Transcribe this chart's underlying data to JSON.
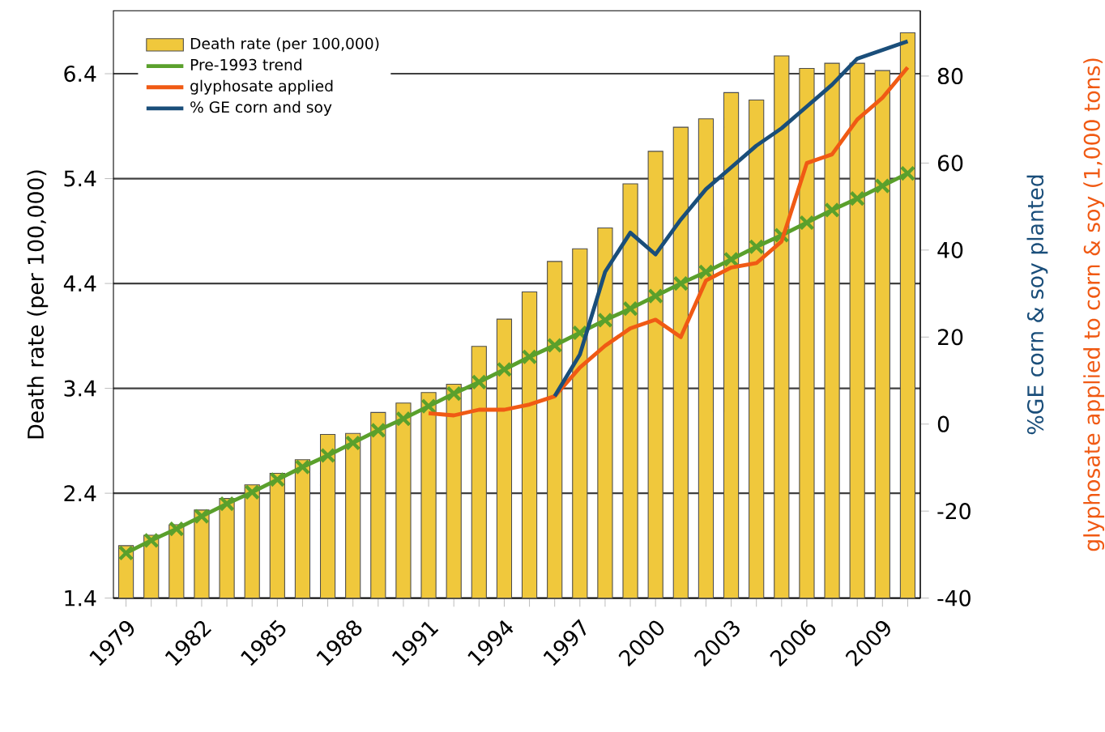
{
  "chart_data": {
    "type": "bar",
    "ylabel": "Death rate (per 100,000)",
    "y2label": "%GE corn & soy planted",
    "annotations": [
      "glyphosate applied to corn & soy (1,000 tons)"
    ],
    "x": [
      1979,
      1980,
      1981,
      1982,
      1983,
      1984,
      1985,
      1986,
      1987,
      1988,
      1989,
      1990,
      1991,
      1992,
      1993,
      1994,
      1995,
      1996,
      1997,
      1998,
      1999,
      2000,
      2001,
      2002,
      2003,
      2004,
      2005,
      2006,
      2007,
      2008,
      2009,
      2010
    ],
    "series": [
      {
        "name": "Death rate (per 100,000)",
        "color": "#f0c83c",
        "values": [
          1.9,
          2.0,
          2.1,
          2.24,
          2.35,
          2.48,
          2.59,
          2.72,
          2.96,
          2.97,
          3.17,
          3.26,
          3.36,
          3.44,
          3.8,
          4.06,
          4.32,
          4.61,
          4.73,
          4.93,
          5.35,
          5.66,
          5.89,
          5.97,
          6.22,
          6.15,
          6.57,
          6.45,
          6.5,
          6.5,
          6.43,
          6.79
        ]
      },
      {
        "name": "Pre-1993 trend",
        "type": "line",
        "color": "#5aa02c",
        "marker": "cross",
        "values": [
          1.83,
          1.95,
          2.06,
          2.18,
          2.3,
          2.41,
          2.53,
          2.65,
          2.76,
          2.88,
          3.0,
          3.11,
          3.23,
          3.35,
          3.46,
          3.58,
          3.7,
          3.81,
          3.93,
          4.05,
          4.16,
          4.28,
          4.4,
          4.51,
          4.63,
          4.75,
          4.86,
          4.98,
          5.1,
          5.21,
          5.33,
          5.45
        ]
      },
      {
        "name": "glyphosate applied",
        "type": "line",
        "axis": "y2",
        "color": "#f05a14",
        "x": [
          1991,
          1992,
          1993,
          1994,
          1995,
          1996,
          1997,
          1998,
          1999,
          2000,
          2001,
          2002,
          2003,
          2004,
          2005,
          2006,
          2007,
          2008,
          2009,
          2010
        ],
        "values": [
          2.5,
          2,
          3.3,
          3.3,
          4.5,
          6.4,
          13,
          18,
          22,
          24,
          20,
          33,
          36,
          37,
          42,
          60,
          62,
          70,
          75,
          82
        ]
      },
      {
        "name": "% GE corn and soy",
        "type": "line",
        "axis": "y2",
        "color": "#1a4e7a",
        "x": [
          1996,
          1997,
          1998,
          1999,
          2000,
          2001,
          2002,
          2003,
          2004,
          2005,
          2006,
          2007,
          2008,
          2009,
          2010
        ],
        "values": [
          6.4,
          16,
          35,
          44,
          39,
          47,
          54,
          59,
          64,
          68,
          73,
          78,
          84,
          86,
          88
        ]
      }
    ],
    "xlim": [
      1978.5,
      2010.5
    ],
    "xticks": [
      1979,
      {
        "value": 1980,
        "label": null
      },
      {
        "value": 1981,
        "label": null
      },
      1982,
      {
        "value": 1983,
        "label": null
      },
      {
        "value": 1984,
        "label": null
      },
      1985,
      {
        "value": 1986,
        "label": null
      },
      {
        "value": 1987,
        "label": null
      },
      1988,
      {
        "value": 1989,
        "label": null
      },
      {
        "value": 1990,
        "label": null
      },
      1991,
      {
        "value": 1992,
        "label": null
      },
      {
        "value": 1993,
        "label": null
      },
      1994,
      {
        "value": 1995,
        "label": null
      },
      {
        "value": 1996,
        "label": null
      },
      1997,
      {
        "value": 1998,
        "label": null
      },
      {
        "value": 1999,
        "label": null
      },
      2000,
      {
        "value": 2001,
        "label": null
      },
      {
        "value": 2002,
        "label": null
      },
      2003,
      {
        "value": 2004,
        "label": null
      },
      {
        "value": 2005,
        "label": null
      },
      2006,
      {
        "value": 2007,
        "label": null
      },
      {
        "value": 2008,
        "label": null
      },
      2009,
      {
        "value": 2010,
        "label": null
      }
    ],
    "ylim": [
      1.4,
      7.0
    ],
    "yticks": [
      1.4,
      2.4,
      3.4,
      4.4,
      5.4,
      6.4
    ],
    "y2lim": [
      -40,
      95
    ],
    "y2ticks": [
      -40,
      -20,
      0,
      20,
      40,
      60,
      80
    ],
    "grid": "y",
    "legend": "top left"
  }
}
